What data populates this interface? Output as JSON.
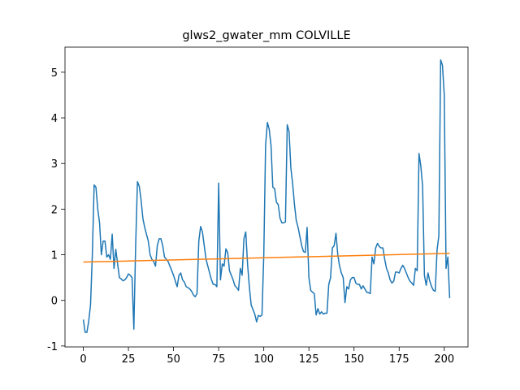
{
  "chart_data": {
    "type": "line",
    "title": "glws2_gwater_mm COLVILLE",
    "xlim": [
      -10.15,
      213.15
    ],
    "ylim": [
      -1.02,
      5.55
    ],
    "xticks": [
      0,
      25,
      50,
      75,
      100,
      125,
      150,
      175,
      200
    ],
    "yticks": [
      -1,
      0,
      1,
      2,
      3,
      4,
      5
    ],
    "series": [
      {
        "color": "#1f77b4",
        "x": [
          0,
          1,
          2,
          3,
          4,
          5,
          6,
          7,
          8,
          9,
          10,
          11,
          12,
          13,
          14,
          15,
          16,
          17,
          18,
          19,
          20,
          21,
          22,
          23,
          24,
          25,
          26,
          27,
          28,
          29,
          30,
          31,
          32,
          33,
          34,
          35,
          36,
          37,
          38,
          39,
          40,
          41,
          42,
          43,
          44,
          45,
          46,
          47,
          48,
          49,
          50,
          51,
          52,
          53,
          54,
          55,
          56,
          57,
          58,
          59,
          60,
          61,
          62,
          63,
          64,
          65,
          66,
          67,
          68,
          69,
          70,
          71,
          72,
          73,
          74,
          75,
          76,
          77,
          78,
          79,
          80,
          81,
          82,
          83,
          84,
          85,
          86,
          87,
          88,
          89,
          90,
          91,
          92,
          93,
          94,
          95,
          96,
          97,
          98,
          99,
          100,
          101,
          102,
          103,
          104,
          105,
          106,
          107,
          108,
          109,
          110,
          111,
          112,
          113,
          114,
          115,
          116,
          117,
          118,
          119,
          120,
          121,
          122,
          123,
          124,
          125,
          126,
          127,
          128,
          129,
          130,
          131,
          132,
          133,
          134,
          135,
          136,
          137,
          138,
          139,
          140,
          141,
          142,
          143,
          144,
          145,
          146,
          147,
          148,
          149,
          150,
          151,
          152,
          153,
          154,
          155,
          156,
          157,
          158,
          159,
          160,
          161,
          162,
          163,
          164,
          165,
          166,
          167,
          168,
          169,
          170,
          171,
          172,
          173,
          174,
          175,
          176,
          177,
          178,
          179,
          180,
          181,
          182,
          183,
          184,
          185,
          186,
          187,
          188,
          189,
          190,
          191,
          192,
          193,
          194,
          195,
          196,
          197,
          198,
          199,
          200,
          201,
          202,
          203
        ],
        "values": [
          -0.42,
          -0.7,
          -0.7,
          -0.45,
          -0.1,
          1.0,
          2.53,
          2.48,
          2.0,
          1.7,
          1.0,
          1.3,
          1.3,
          0.95,
          1.0,
          0.9,
          1.45,
          0.7,
          1.12,
          0.8,
          0.5,
          0.47,
          0.43,
          0.45,
          0.5,
          0.58,
          0.55,
          0.5,
          -0.63,
          1.2,
          2.6,
          2.5,
          2.2,
          1.8,
          1.6,
          1.45,
          1.3,
          1.0,
          0.9,
          0.85,
          0.75,
          1.2,
          1.35,
          1.35,
          1.2,
          0.95,
          0.9,
          0.85,
          0.75,
          0.65,
          0.55,
          0.42,
          0.3,
          0.55,
          0.6,
          0.45,
          0.4,
          0.3,
          0.28,
          0.25,
          0.2,
          0.12,
          0.08,
          0.15,
          1.3,
          1.62,
          1.5,
          1.2,
          0.9,
          0.75,
          0.6,
          0.45,
          0.35,
          0.35,
          0.3,
          2.57,
          0.45,
          0.8,
          0.75,
          1.13,
          1.05,
          0.65,
          0.55,
          0.45,
          0.32,
          0.28,
          0.22,
          0.7,
          0.55,
          1.35,
          1.5,
          0.8,
          0.3,
          -0.1,
          -0.2,
          -0.3,
          -0.47,
          -0.33,
          -0.35,
          -0.32,
          1.0,
          3.4,
          3.9,
          3.75,
          3.4,
          2.48,
          2.45,
          2.15,
          2.1,
          1.8,
          1.7,
          1.7,
          1.72,
          3.85,
          3.7,
          2.9,
          2.55,
          2.1,
          1.75,
          1.6,
          1.4,
          1.2,
          1.07,
          1.05,
          1.6,
          0.5,
          0.22,
          0.18,
          0.15,
          -0.32,
          -0.18,
          -0.3,
          -0.25,
          -0.3,
          -0.28,
          -0.28,
          0.35,
          0.5,
          1.15,
          1.2,
          1.47,
          1.0,
          0.75,
          0.6,
          0.5,
          -0.05,
          0.3,
          0.25,
          0.45,
          0.5,
          0.5,
          0.38,
          0.35,
          0.35,
          0.25,
          0.32,
          0.25,
          0.18,
          0.17,
          0.15,
          0.95,
          0.8,
          1.15,
          1.25,
          1.18,
          1.15,
          1.15,
          0.9,
          0.7,
          0.6,
          0.45,
          0.38,
          0.42,
          0.62,
          0.62,
          0.6,
          0.7,
          0.77,
          0.7,
          0.6,
          0.5,
          0.42,
          0.38,
          0.33,
          0.7,
          0.65,
          3.22,
          2.95,
          2.5,
          0.55,
          0.33,
          0.6,
          0.42,
          0.3,
          0.22,
          0.2,
          1.1,
          1.42,
          5.27,
          5.15,
          4.5,
          0.7,
          0.95,
          0.05
        ]
      },
      {
        "color": "#ff7f0e",
        "x": [
          0,
          203
        ],
        "values": [
          0.84,
          1.03
        ]
      }
    ]
  }
}
